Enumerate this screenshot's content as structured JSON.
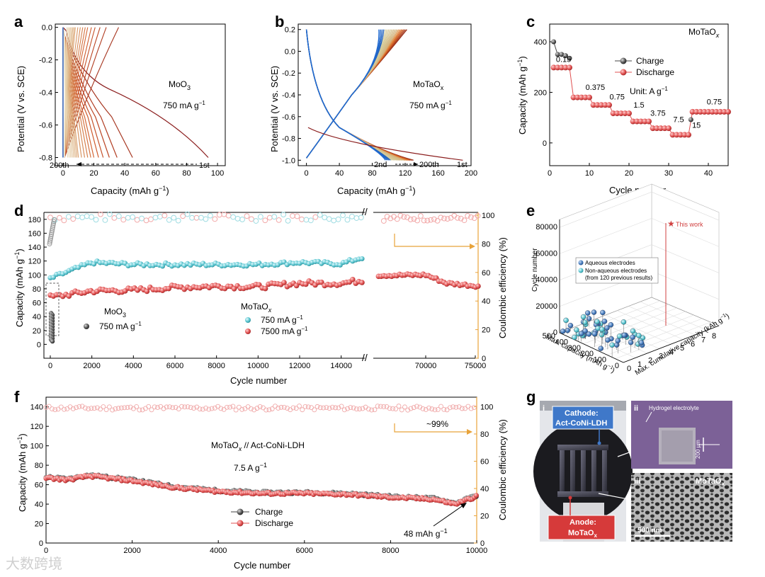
{
  "panels": {
    "a": {
      "letter": "a",
      "material": "MoO",
      "material_sub": "3",
      "rate": "750 mA g",
      "rate_sup": "−1",
      "xlabel": "Capacity (mAh g",
      "xlabel_sup": "−1",
      "xlabel_end": ")",
      "ylabel": "Potential (V vs. SCE)",
      "cycle_first": "1st",
      "cycle_last": "200th",
      "xticks": [
        "0",
        "20",
        "40",
        "60",
        "80",
        "100"
      ],
      "yticks": [
        "0.0",
        "-0.2",
        "-0.4",
        "-0.6",
        "-0.8"
      ]
    },
    "b": {
      "letter": "b",
      "material": "MoTaO",
      "material_sub": "x",
      "rate": "750 mA g",
      "rate_sup": "−1",
      "xlabel": "Capacity (mAh g",
      "xlabel_sup": "−1",
      "xlabel_end": ")",
      "ylabel": "Potential (V vs. SCE)",
      "cycle_first": "1st",
      "cycle_second": "2nd",
      "cycle_last": "200th",
      "xticks": [
        "0",
        "40",
        "80",
        "120",
        "160",
        "200"
      ],
      "yticks": [
        "0.2",
        "0.0",
        "-0.2",
        "-0.4",
        "-0.6",
        "-0.8",
        "-1.0"
      ]
    },
    "c": {
      "letter": "c",
      "material": "MoTaO",
      "material_sub": "x",
      "unit": "Unit: A g",
      "unit_sup": "−1",
      "xlabel": "Cycle number",
      "ylabel": "Capacity (mAh g",
      "ylabel_sup": "−1",
      "ylabel_end": ")",
      "legend": [
        "Charge",
        "Discharge"
      ],
      "xticks": [
        "0",
        "10",
        "20",
        "30",
        "40"
      ],
      "yticks": [
        "0",
        "200",
        "400"
      ],
      "rate_labels": [
        "0.15",
        "0.375",
        "0.75",
        "1.5",
        "3.75",
        "7.5",
        "15",
        "0.75"
      ]
    },
    "d": {
      "letter": "d",
      "xlabel": "Cycle number",
      "ylabel": "Capacity (mAh g",
      "ylabel_sup": "−1",
      "ylabel_end": ")",
      "y2label": "Coulombic efficiency (%)",
      "xticks_left": [
        "0",
        "2000",
        "4000",
        "6000",
        "8000",
        "10000",
        "12000",
        "14000"
      ],
      "xticks_right": [
        "70000",
        "75000"
      ],
      "yticks": [
        "0",
        "20",
        "40",
        "60",
        "80",
        "100",
        "120",
        "140",
        "160",
        "180"
      ],
      "y2ticks": [
        "0",
        "20",
        "40",
        "60",
        "80",
        "100"
      ],
      "legend_moo3": "MoO",
      "legend_moo3_sub": "3",
      "legend_moo3_rate": "750 mA g",
      "legend_motaox": "MoTaO",
      "legend_motaox_sub": "x",
      "legend_750": "750 mA g",
      "legend_7500": "7500 mA g",
      "sup": "−1"
    },
    "e": {
      "letter": "e",
      "zlabel": "Cycle number",
      "xlabel": "Max. capacity (mAh g",
      "xlabel_sup": "−1",
      "xlabel_end": ")",
      "ylabel": "Max. cumulative capacity (kAh g",
      "ylabel_sup": "−1",
      "ylabel_end": ")",
      "zticks": [
        "0",
        "20000",
        "40000",
        "60000",
        "80000"
      ],
      "capticks": [
        "500",
        "400",
        "300",
        "200",
        "100",
        "0"
      ],
      "cumticks": [
        "0",
        "1",
        "2",
        "3",
        "4",
        "5",
        "6",
        "7",
        "8"
      ],
      "star_label": "This work",
      "legend": [
        "Aqueous electrodes",
        "Non-aqueous electrodes"
      ],
      "legend_note": "(from 120 previous results)"
    },
    "f": {
      "letter": "f",
      "device": "MoTaO",
      "device_sub": "x",
      "device_end": " // Act-CoNi-LDH",
      "rate": "7.5 A g",
      "rate_sup": "−1",
      "ce_label": "~99%",
      "end_cap": "48 mAh g",
      "end_cap_sup": "−1",
      "xlabel": "Cycle number",
      "ylabel": "Capacity (mAh g",
      "ylabel_sup": "−1",
      "ylabel_end": ")",
      "y2label": "Coulombic efficiency (%)",
      "legend": [
        "Charge",
        "Discharge"
      ],
      "xticks": [
        "0",
        "2000",
        "4000",
        "6000",
        "8000",
        "10000"
      ],
      "yticks": [
        "0",
        "20",
        "40",
        "60",
        "80",
        "100",
        "120",
        "140"
      ],
      "y2ticks": [
        "0",
        "20",
        "40",
        "60",
        "80",
        "100"
      ]
    },
    "g": {
      "letter": "g",
      "sub_i": "i",
      "sub_ii": "ii",
      "sub_iii": "iii",
      "cathode": "Cathode:",
      "cathode_name": "Act-CoNi-LDH",
      "anode": "Anode:",
      "anode_name": "MoTaO",
      "anode_sub": "x",
      "hydrogel": "Hydrogel electrolyte",
      "scale_ii": "200 μm",
      "material_iii": "MoTaO",
      "material_iii_sub": "x",
      "scale_iii": "500 nm"
    }
  },
  "watermark": "大数跨境",
  "colors": {
    "charge": "#444444",
    "discharge": "#e05050",
    "motaox_750": "#5cc6d0",
    "ce": "#e8a33a",
    "moo3": "#888888",
    "aqueous": "#4a7fbf",
    "nonaqueous": "#6fc9d6",
    "star": "#d04040"
  },
  "chart_data": [
    {
      "panel": "a",
      "type": "line",
      "title": "MoO3 750 mA g-1",
      "xlabel": "Capacity (mAh g-1)",
      "ylabel": "Potential (V vs. SCE)",
      "xlim": [
        -5,
        105
      ],
      "ylim": [
        -0.85,
        0.02
      ],
      "series": [
        {
          "name": "1st",
          "max_capacity": 94
        },
        {
          "name": "200th",
          "max_capacity": 1
        }
      ]
    },
    {
      "panel": "b",
      "type": "line",
      "title": "MoTaOx 750 mA g-1",
      "xlabel": "Capacity (mAh g-1)",
      "ylabel": "Potential (V vs. SCE)",
      "xlim": [
        -10,
        200
      ],
      "ylim": [
        -1.05,
        0.25
      ],
      "series": [
        {
          "name": "1st",
          "max_capacity": 190
        },
        {
          "name": "2nd",
          "max_capacity": 130
        },
        {
          "name": "200th",
          "max_capacity": 130
        }
      ]
    },
    {
      "panel": "c",
      "type": "scatter",
      "xlabel": "Cycle number",
      "ylabel": "Capacity (mAh g-1)",
      "xlim": [
        0,
        45
      ],
      "ylim": [
        -90,
        470
      ],
      "rates_A_per_g": [
        0.15,
        0.375,
        0.75,
        1.5,
        3.75,
        7.5,
        15,
        0.75
      ],
      "series": [
        {
          "name": "Charge",
          "x": [
            1,
            2,
            3,
            4,
            5
          ],
          "values": [
            400,
            350,
            350,
            345,
            335
          ]
        },
        {
          "name": "Discharge",
          "segments": [
            {
              "x": [
                1,
                5
              ],
              "value": 298
            },
            {
              "x": [
                6,
                10
              ],
              "value": 180
            },
            {
              "x": [
                11,
                15
              ],
              "value": 150
            },
            {
              "x": [
                16,
                20
              ],
              "value": 117
            },
            {
              "x": [
                21,
                25
              ],
              "value": 85
            },
            {
              "x": [
                26,
                30
              ],
              "value": 58
            },
            {
              "x": [
                31,
                35
              ],
              "value": 32
            },
            {
              "x": [
                36,
                45
              ],
              "value": 123
            }
          ]
        }
      ]
    },
    {
      "panel": "d",
      "type": "scatter",
      "xlabel": "Cycle number",
      "ylabel": "Capacity (mAh g-1)",
      "y2label": "Coulombic efficiency (%)",
      "ylim": [
        -20,
        190
      ],
      "y2lim": [
        0,
        102
      ],
      "series": [
        {
          "name": "MoO3 750 mA g-1",
          "x": [
            0,
            100,
            200,
            300,
            400
          ],
          "values": [
            40,
            30,
            15,
            8,
            5
          ]
        },
        {
          "name": "MoTaOx 750 mA g-1",
          "x": [
            0,
            2000,
            4000,
            6000,
            8000,
            10000,
            12000,
            14000,
            15000
          ],
          "values": [
            95,
            118,
            115,
            115,
            115,
            115,
            118,
            116,
            125
          ]
        },
        {
          "name": "MoTaOx 7500 mA g-1",
          "x": [
            0,
            2000,
            4000,
            6000,
            8000,
            10000,
            12000,
            14000,
            15000,
            70000,
            72000,
            75000
          ],
          "values": [
            68,
            77,
            78,
            82,
            84,
            83,
            88,
            88,
            92,
            100,
            88,
            84
          ]
        },
        {
          "name": "Coulombic efficiency",
          "axis": "y2",
          "x": [
            0,
            5000,
            10000,
            15000,
            70000,
            75000
          ],
          "values": [
            98,
            98,
            98,
            98,
            98,
            98
          ]
        }
      ]
    },
    {
      "panel": "e",
      "type": "scatter",
      "zlabel": "Cycle number",
      "series": [
        {
          "name": "This work",
          "max_capacity_mAh_g": 130,
          "cumulative_kAh_g": 9.5,
          "cycles": 75000
        }
      ]
    },
    {
      "panel": "f",
      "type": "scatter",
      "xlabel": "Cycle number",
      "ylabel": "Capacity (mAh g-1)",
      "y2label": "Coulombic efficiency (%)",
      "xlim": [
        0,
        10000
      ],
      "ylim": [
        0,
        150
      ],
      "y2lim": [
        0,
        107
      ],
      "series": [
        {
          "name": "Discharge",
          "x": [
            0,
            500,
            1000,
            2000,
            3000,
            4000,
            5000,
            6000,
            7000,
            8000,
            9000,
            9500,
            10000
          ],
          "values": [
            67,
            65,
            69,
            64,
            57,
            53,
            51,
            51,
            50,
            47,
            45,
            40,
            48
          ]
        },
        {
          "name": "Charge",
          "x": [
            0,
            1000,
            5000,
            10000
          ],
          "values": [
            68,
            69,
            52,
            49
          ]
        },
        {
          "name": "Coulombic efficiency",
          "axis": "y2",
          "x": [
            0,
            5000,
            10000
          ],
          "values": [
            99,
            99,
            99
          ]
        }
      ]
    }
  ]
}
